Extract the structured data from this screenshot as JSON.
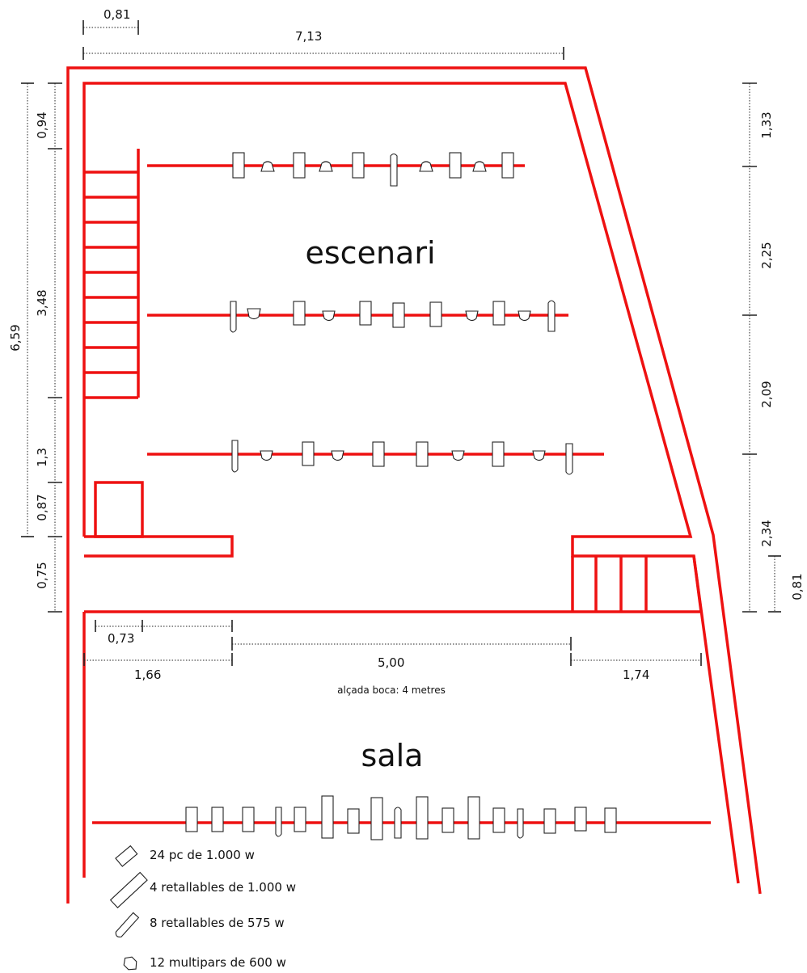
{
  "dimensions": {
    "top_small": "0,81",
    "top_total": "7,13",
    "left_total": "6,59",
    "left_1": "0,94",
    "left_2": "3,48",
    "left_3": "1,3",
    "left_4": "0,87",
    "left_5": "0,75",
    "right_1": "1,33",
    "right_2": "2,25",
    "right_3": "2,09",
    "right_4": "2,34",
    "right_5": "0,81",
    "bottom_small": "0,73",
    "bottom_left": "1,66",
    "bottom_center": "5,00",
    "bottom_right": "1,74"
  },
  "labels": {
    "stage": "escenari",
    "hall": "sala",
    "opening_height": "alçada boca: 4 metres"
  },
  "legend": [
    {
      "icon": "pc-spot-icon",
      "text": "24 pc de 1.000 w"
    },
    {
      "icon": "large-profile-spot-icon",
      "text": "4 retallables de 1.000 w"
    },
    {
      "icon": "small-profile-spot-icon",
      "text": "8 retallables de  575 w"
    },
    {
      "icon": "par-can-icon",
      "text": "12 multipars de  600 w"
    }
  ],
  "colors": {
    "walls": "#ee1111",
    "lines": "#222222"
  }
}
